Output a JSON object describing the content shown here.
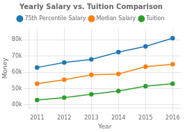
{
  "chart_data": {
    "type": "line",
    "title": "Yearly Salary vs. Tuition Comparison",
    "x_label": "Year",
    "y_label": "Money",
    "x": [
      2011,
      2012,
      2013,
      2014,
      2015,
      2016
    ],
    "series": [
      {
        "name": "75th Percentile Salary",
        "color": "#1f77b4",
        "values": [
          63000,
          66000,
          68000,
          72500,
          76000,
          81000
        ]
      },
      {
        "name": "Median Salary",
        "color": "#ff7f0e",
        "values": [
          53000,
          55500,
          58500,
          59000,
          63500,
          65000
        ]
      },
      {
        "name": "Tuition",
        "color": "#2ca02c",
        "values": [
          43000,
          44500,
          46500,
          48500,
          51500,
          53000
        ]
      }
    ],
    "xlim": [
      2010.7,
      2016.3
    ],
    "xticks": [
      2011,
      2012,
      2013,
      2014,
      2015,
      2016
    ],
    "ylim": [
      38000,
      87000
    ],
    "yticks": [
      {
        "value": 40000,
        "label": "40k"
      },
      {
        "value": 50000,
        "label": "50k"
      },
      {
        "value": 60000,
        "label": "60k"
      },
      {
        "value": 70000,
        "label": "70k"
      },
      {
        "value": 80000,
        "label": "80k"
      }
    ],
    "grid": true,
    "legend": "top",
    "marker": "circle"
  }
}
